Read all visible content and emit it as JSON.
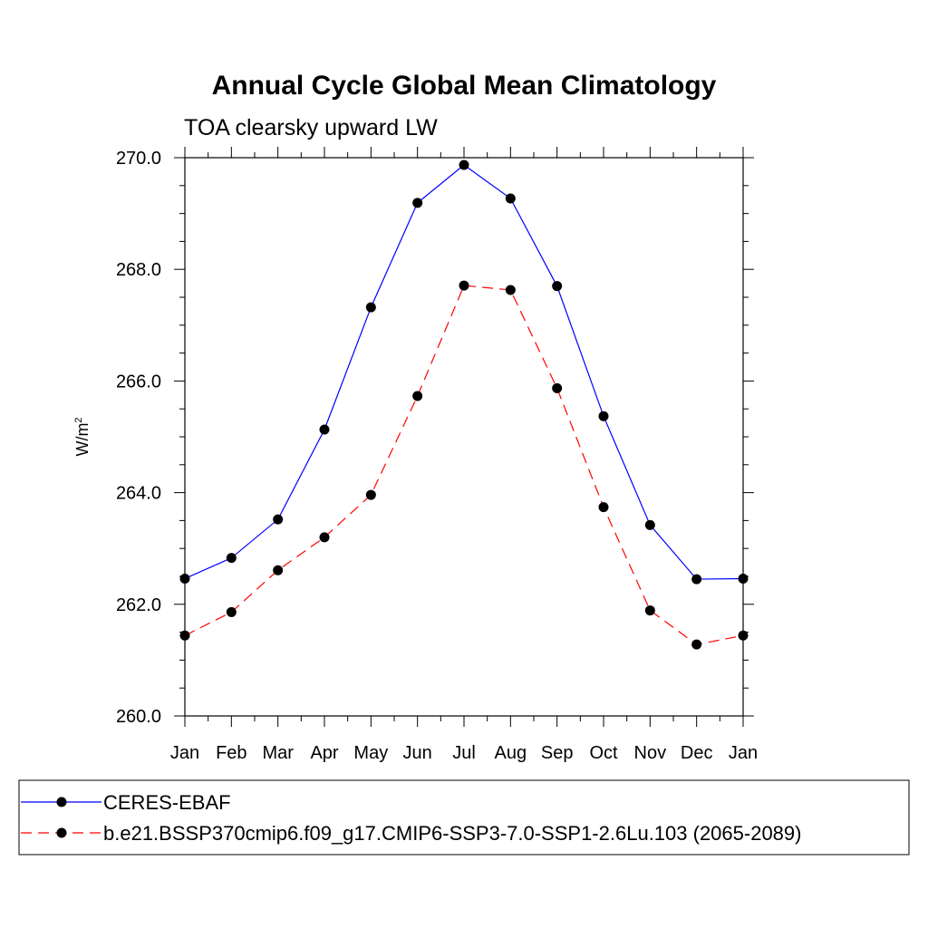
{
  "chart_data": {
    "type": "line",
    "title": "Annual Cycle Global Mean Climatology",
    "subtitle": "TOA clearsky upward LW",
    "ylabel": "W/m",
    "ylabel_superscript": "2",
    "xlabel": "",
    "categories": [
      "Jan",
      "Feb",
      "Mar",
      "Apr",
      "May",
      "Jun",
      "Jul",
      "Aug",
      "Sep",
      "Oct",
      "Nov",
      "Dec",
      "Jan"
    ],
    "ylim": [
      260.0,
      270.0
    ],
    "yticks": [
      "260.0",
      "262.0",
      "264.0",
      "266.0",
      "268.0",
      "270.0"
    ],
    "grid": false,
    "legend_position": "bottom",
    "series": [
      {
        "name": "CERES-EBAF",
        "color": "#0000ff",
        "dash": "solid",
        "values": [
          262.46,
          262.83,
          263.52,
          265.13,
          267.32,
          269.19,
          269.87,
          269.27,
          267.7,
          265.37,
          263.42,
          262.45,
          262.46
        ]
      },
      {
        "name": "b.e21.BSSP370cmip6.f09_g17.CMIP6-SSP3-7.0-SSP1-2.6Lu.103 (2065-2089)",
        "color": "#ff0000",
        "dash": "dashed",
        "values": [
          261.44,
          261.86,
          262.61,
          263.2,
          263.96,
          265.73,
          267.71,
          267.63,
          265.87,
          263.74,
          261.89,
          261.28,
          261.44
        ]
      }
    ]
  }
}
